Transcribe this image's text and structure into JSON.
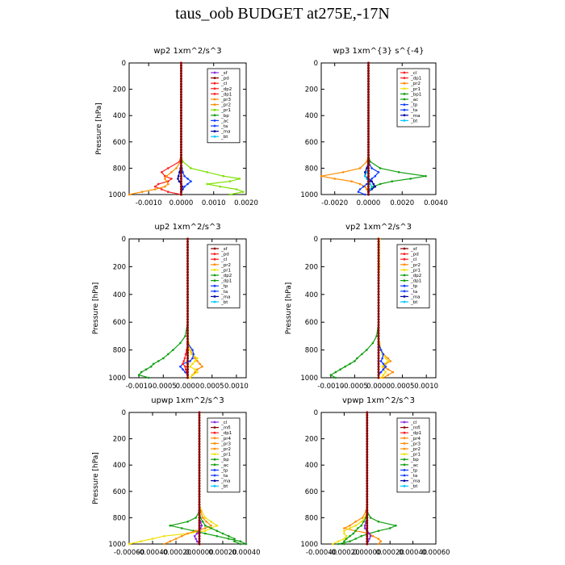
{
  "title": "taus_oob  BUDGET at275E,-17N",
  "colors": {
    "purple": "#8a2be2",
    "dark_red": "#8b0000",
    "red": "#ff2020",
    "orange": "#ff8c00",
    "yellow": "#f0e000",
    "lightgreen": "#7ee000",
    "green": "#10a010",
    "blue": "#1040ff",
    "darkblue": "#0000a0",
    "cyan": "#00c8ff",
    "axis": "#000000"
  },
  "chart_data": [
    {
      "type": "line",
      "title": "wp2  1xm^2/s^3",
      "ylabel": "Pressure [hPa]",
      "xlim": [
        -0.0016,
        0.002
      ],
      "ylim": [
        1000,
        0
      ],
      "xticks": [
        -0.001,
        0.0,
        0.001,
        0.002
      ],
      "xtick_labels": [
        "-0.0010",
        "0.0000",
        "0.0010",
        "0.0020"
      ],
      "yticks": [
        0,
        200,
        400,
        600,
        800,
        1000
      ],
      "ytick_labels": [
        "0",
        "200",
        "400",
        "600",
        "800",
        "1000"
      ],
      "legend_position": "top-right",
      "legend": [
        "_sf",
        "_pd",
        "_cl",
        "_dp2",
        "_dp1",
        "_pr3",
        "_pr2",
        "_pr1",
        "_bp",
        "_ac",
        "_ta",
        "_ma",
        "_bt"
      ],
      "series_colors": [
        "#8a2be2",
        "#8b0000",
        "#ff2020",
        "#ff2020",
        "#ff2020",
        "#ff8c00",
        "#ff8c00",
        "#7ee000",
        "#10a010",
        "#1040ff",
        "#1040ff",
        "#0000a0",
        "#00c8ff"
      ],
      "p": [
        0,
        200,
        400,
        600,
        700,
        750,
        800,
        830,
        860,
        880,
        900,
        920,
        940,
        960,
        980,
        1000
      ],
      "series": [
        {
          "name": "_cl",
          "values": [
            0,
            0,
            0,
            0,
            0,
            -5e-05,
            -0.0004,
            -0.0006,
            -0.0005,
            -0.0003,
            -0.0004,
            -0.0007,
            -0.0008,
            -0.0006,
            -0.0004,
            0
          ]
        },
        {
          "name": "_pr2",
          "values": [
            0,
            0,
            0,
            0,
            0,
            -2e-05,
            -0.00015,
            -0.0003,
            -0.00045,
            -0.0005,
            -0.00045,
            -0.0004,
            -0.0005,
            -0.0008,
            -0.0012,
            -0.0016
          ]
        },
        {
          "name": "_pr1",
          "values": [
            0,
            0,
            0,
            0,
            0,
            5e-05,
            0.0003,
            0.0008,
            0.0013,
            0.0018,
            0.0015,
            0.0008,
            0.0012,
            0.0017,
            0.0019,
            0.0015
          ]
        },
        {
          "name": "_ac",
          "values": [
            0,
            0,
            0,
            0,
            0,
            0,
            2e-05,
            5e-05,
            0.0001,
            0.0002,
            0.0003,
            0.0002,
            0.0001,
            5e-05,
            0,
            0
          ]
        },
        {
          "name": "_ma",
          "values": [
            0,
            0,
            0,
            0,
            0,
            0,
            -2e-05,
            -5e-05,
            -8e-05,
            -0.0001,
            -6e-05,
            0,
            3e-05,
            2e-05,
            0,
            0
          ]
        }
      ]
    },
    {
      "type": "line",
      "title": "wp3  1xm^{3} s^{-4}",
      "ylabel": "",
      "xlim": [
        -0.0028,
        0.004
      ],
      "ylim": [
        1000,
        0
      ],
      "xticks": [
        -0.002,
        0.0,
        0.002,
        0.004
      ],
      "xtick_labels": [
        "-0.0020",
        "0.0000",
        "0.0020",
        "0.0040"
      ],
      "yticks": [
        0,
        200,
        400,
        600,
        800,
        1000
      ],
      "ytick_labels": [
        "0",
        "200",
        "400",
        "600",
        "800",
        "1000"
      ],
      "legend_position": "top-right",
      "legend": [
        "_cl",
        "_dp1",
        "_pr2",
        "_pr1",
        "_bp1",
        "_ac",
        "_tp",
        "_ta",
        "_ma",
        "_bt"
      ],
      "series_colors": [
        "#ff2020",
        "#ff2020",
        "#ff8c00",
        "#f0e000",
        "#10a010",
        "#10a010",
        "#1040ff",
        "#1040ff",
        "#0000a0",
        "#00c8ff"
      ],
      "p": [
        0,
        200,
        400,
        600,
        700,
        750,
        800,
        830,
        860,
        880,
        900,
        920,
        940,
        960,
        980,
        1000
      ],
      "series": [
        {
          "name": "_pr2",
          "values": [
            0,
            0,
            0,
            0,
            0,
            -0.0001,
            -0.0005,
            -0.0015,
            -0.0028,
            -0.002,
            -0.001,
            -0.0005,
            -0.0002,
            -0.0001,
            0,
            0
          ]
        },
        {
          "name": "_ac",
          "values": [
            0,
            0,
            0,
            0,
            0,
            0.0001,
            0.0007,
            0.0018,
            0.0034,
            0.0025,
            0.0014,
            0.0007,
            0.0003,
            0.0001,
            0,
            0
          ]
        },
        {
          "name": "_tp",
          "values": [
            0,
            0,
            0,
            0,
            0,
            0,
            0.0002,
            0.0006,
            0.0004,
            0.0002,
            0.0001,
            -0.0001,
            -0.0003,
            -0.0005,
            -0.0006,
            -0.0002
          ]
        },
        {
          "name": "_ma",
          "values": [
            0,
            0,
            0,
            0,
            0,
            0,
            -0.0001,
            -0.0002,
            -0.0002,
            0,
            0.0002,
            0.0003,
            0.0004,
            0.0002,
            0,
            0
          ]
        },
        {
          "name": "_bt",
          "values": [
            0,
            0,
            0,
            0,
            0,
            0,
            0,
            -0.0001,
            -0.0002,
            -0.0001,
            0,
            0.0001,
            0.0002,
            0.0001,
            0,
            0
          ]
        }
      ]
    },
    {
      "type": "line",
      "title": "up2   1xm^2/s^3",
      "ylabel": "Pressure [hPa]",
      "xlim": [
        -0.0012,
        0.0012
      ],
      "ylim": [
        1000,
        0
      ],
      "xticks": [
        -0.001,
        -0.0005,
        0.0,
        0.0005,
        0.001
      ],
      "xtick_labels": [
        "-0.0010",
        "-0.0005",
        "0.0000",
        "0.0005",
        "0.0010"
      ],
      "yticks": [
        0,
        200,
        400,
        600,
        800,
        1000
      ],
      "ytick_labels": [
        "0",
        "200",
        "400",
        "600",
        "800",
        "1000"
      ],
      "legend_position": "top-right",
      "legend": [
        "_sf",
        "_pd",
        "_cl",
        "_pr2",
        "_pr1",
        "_dp2",
        "_dp1",
        "_tp",
        "_ta",
        "_ma",
        "_bt"
      ],
      "series_colors": [
        "#8b0000",
        "#ff2020",
        "#ff2020",
        "#ff8c00",
        "#f0e000",
        "#10a010",
        "#10a010",
        "#1040ff",
        "#1040ff",
        "#0000a0",
        "#00c8ff"
      ],
      "p": [
        0,
        200,
        400,
        600,
        700,
        750,
        800,
        830,
        860,
        880,
        900,
        920,
        940,
        960,
        980,
        1000
      ],
      "series": [
        {
          "name": "_dp1",
          "values": [
            0,
            0,
            0,
            0,
            -5e-05,
            -0.00015,
            -0.0003,
            -0.0004,
            -0.0005,
            -0.0006,
            -0.0007,
            -0.00075,
            -0.00085,
            -0.00095,
            -0.001,
            -0.0008
          ]
        },
        {
          "name": "_pr2",
          "values": [
            0,
            0,
            0,
            0,
            0,
            2e-05,
            5e-05,
            0.0001,
            0.00015,
            0.0002,
            0.00025,
            0.0003,
            0.0002,
            0.00015,
            0.0001,
            5e-05
          ]
        },
        {
          "name": "_pr1",
          "values": [
            0,
            0,
            0,
            0,
            0,
            2e-05,
            4e-05,
            8e-05,
            0.0002,
            0.00015,
            0.0001,
            5e-05,
            0.00015,
            0.0002,
            0.0001,
            5e-05
          ]
        },
        {
          "name": "_tp",
          "values": [
            0,
            0,
            0,
            0,
            0,
            0,
            0.0001,
            0.00012,
            0.0001,
            5e-05,
            -0.0001,
            -0.00015,
            -0.0001,
            -5e-05,
            0,
            0
          ]
        },
        {
          "name": "_cl",
          "values": [
            0,
            0,
            0,
            0,
            0,
            0,
            -2e-05,
            -4e-05,
            -6e-05,
            -8e-05,
            -0.0001,
            -5e-05,
            -4e-05,
            -2e-05,
            0,
            0
          ]
        }
      ]
    },
    {
      "type": "line",
      "title": "vp2   1xm^2/s^3",
      "ylabel": "Pressure [hPa]",
      "xlim": [
        -0.0012,
        0.0012
      ],
      "ylim": [
        1000,
        0
      ],
      "xticks": [
        -0.001,
        -0.0005,
        0.0,
        0.0005,
        0.001
      ],
      "xtick_labels": [
        "-0.0010",
        "-0.0005",
        "0.0000",
        "0.0005",
        "0.0010"
      ],
      "yticks": [
        0,
        200,
        400,
        600,
        800,
        1000
      ],
      "ytick_labels": [
        "0",
        "200",
        "400",
        "600",
        "800",
        "1000"
      ],
      "legend_position": "top-right",
      "legend": [
        "_sf",
        "_pd",
        "_cl",
        "_pr2",
        "_pr1",
        "_dp2",
        "_dp1",
        "_tp",
        "_ta",
        "_ma",
        "_bt"
      ],
      "series_colors": [
        "#8b0000",
        "#ff2020",
        "#ff2020",
        "#ff8c00",
        "#f0e000",
        "#10a010",
        "#10a010",
        "#1040ff",
        "#1040ff",
        "#0000a0",
        "#00c8ff"
      ],
      "p": [
        0,
        200,
        400,
        600,
        700,
        750,
        800,
        830,
        860,
        880,
        900,
        920,
        940,
        960,
        980,
        1000
      ],
      "series": [
        {
          "name": "_dp1",
          "values": [
            0,
            0,
            0,
            0,
            -4e-05,
            -0.00012,
            -0.00025,
            -0.00035,
            -0.00045,
            -0.0005,
            -0.0006,
            -0.0007,
            -0.0008,
            -0.0009,
            -0.001,
            -0.0009
          ]
        },
        {
          "name": "_pr2",
          "values": [
            0,
            0,
            0,
            0,
            0,
            2e-05,
            5e-05,
            0.0001,
            0.0002,
            0.00025,
            0.00015,
            0.0001,
            0.0002,
            0.0003,
            0.0002,
            0.0001
          ]
        },
        {
          "name": "_pr1",
          "values": [
            2e-05,
            2e-05,
            0,
            0,
            0,
            2e-05,
            4e-05,
            8e-05,
            0.00015,
            0.0002,
            0.00012,
            8e-05,
            0.0001,
            0.00015,
            0.0001,
            5e-05
          ]
        },
        {
          "name": "_tp",
          "values": [
            0,
            0,
            0,
            0,
            0,
            0,
            5e-05,
            0.0001,
            8e-05,
            5e-05,
            0.0001,
            0.00015,
            0.0001,
            5e-05,
            0,
            0
          ]
        }
      ]
    },
    {
      "type": "line",
      "title": "upwp   1xm^2/s^3",
      "ylabel": "Pressure [hPa]",
      "xlim": [
        -0.0006,
        0.0004
      ],
      "ylim": [
        1000,
        0
      ],
      "xticks": [
        -0.0006,
        -0.0004,
        -0.0002,
        0.0,
        0.0002,
        0.0004
      ],
      "xtick_labels": [
        "-0.00060",
        "-0.00040",
        "-0.00020",
        "0.00000",
        "0.00020",
        "0.00040"
      ],
      "yticks": [
        0,
        200,
        400,
        600,
        800,
        1000
      ],
      "ytick_labels": [
        "0",
        "200",
        "400",
        "600",
        "800",
        "1000"
      ],
      "legend_position": "top-right",
      "legend": [
        "_cl",
        "_mfl",
        "_dp1",
        "_pr4",
        "_pr3",
        "_pr2",
        "_pr1",
        "_bp",
        "_ac",
        "_tp",
        "_ta",
        "_ma",
        "_bt"
      ],
      "series_colors": [
        "#8a2be2",
        "#8b0000",
        "#ff2020",
        "#ff8c00",
        "#ff8c00",
        "#ff8c00",
        "#f0e000",
        "#10a010",
        "#10a010",
        "#1040ff",
        "#1040ff",
        "#0000a0",
        "#00c8ff"
      ],
      "p": [
        0,
        200,
        400,
        600,
        700,
        750,
        800,
        830,
        860,
        880,
        900,
        920,
        940,
        960,
        980,
        1000
      ],
      "series": [
        {
          "name": "_pr1",
          "values": [
            0,
            0,
            0,
            0,
            0,
            2e-05,
            5e-05,
            0.0001,
            0.00015,
            0.0001,
            5e-05,
            -0.0001,
            -0.0003,
            -0.0004,
            -0.0005,
            -0.0006
          ]
        },
        {
          "name": "_bp",
          "values": [
            0,
            0,
            0,
            0,
            0,
            0,
            -3e-05,
            -0.0001,
            -0.00025,
            -0.00015,
            -5e-05,
            5e-05,
            0.00015,
            0.00025,
            0.00035,
            0.0004
          ]
        },
        {
          "name": "_pr2",
          "values": [
            0,
            0,
            0,
            0,
            0,
            1e-05,
            3e-05,
            6e-05,
            0.0001,
            5e-05,
            -3e-05,
            -0.0001,
            -0.00015,
            -0.0002,
            -0.00025,
            -0.0003
          ]
        },
        {
          "name": "_ac",
          "values": [
            0,
            0,
            0,
            0,
            0,
            0,
            1e-05,
            3e-05,
            5e-05,
            0.0001,
            0.00015,
            0.0002,
            0.00025,
            0.0003,
            0.0003,
            0.00035
          ]
        },
        {
          "name": "_cl",
          "values": [
            0,
            0,
            0,
            0,
            0,
            0,
            0,
            1e-05,
            2e-05,
            1e-05,
            0,
            -2e-05,
            -4e-05,
            -3e-05,
            -2e-05,
            0
          ]
        }
      ]
    },
    {
      "type": "line",
      "title": "vpwp   1xm^2/s^3",
      "ylabel": "",
      "xlim": [
        -0.0004,
        0.0006
      ],
      "ylim": [
        1000,
        0
      ],
      "xticks": [
        -0.0004,
        -0.0002,
        0.0,
        0.0002,
        0.0004,
        0.0006
      ],
      "xtick_labels": [
        "-0.00040",
        "-0.00020",
        "0.00000",
        "0.00020",
        "0.00040",
        "0.00060"
      ],
      "yticks": [
        0,
        200,
        400,
        600,
        800,
        1000
      ],
      "ytick_labels": [
        "0",
        "200",
        "400",
        "600",
        "800",
        "1000"
      ],
      "legend_position": "top-right",
      "legend": [
        "_cl",
        "_mfl",
        "_dp1",
        "_pr4",
        "_pr3",
        "_pr2",
        "_pr1",
        "_bp",
        "_ac",
        "_tp",
        "_ta",
        "_ma",
        "_bt"
      ],
      "series_colors": [
        "#8a2be2",
        "#8b0000",
        "#ff2020",
        "#ff8c00",
        "#ff8c00",
        "#ff8c00",
        "#f0e000",
        "#10a010",
        "#10a010",
        "#1040ff",
        "#1040ff",
        "#0000a0",
        "#00c8ff"
      ],
      "p": [
        0,
        200,
        400,
        600,
        700,
        750,
        800,
        830,
        860,
        880,
        900,
        920,
        940,
        960,
        980,
        1000
      ],
      "series": [
        {
          "name": "_bp",
          "values": [
            0,
            0,
            0,
            0,
            0,
            0,
            3e-05,
            0.0001,
            0.00025,
            0.0002,
            0.0001,
            2e-05,
            -5e-05,
            -0.0001,
            -0.00015,
            -0.00025
          ]
        },
        {
          "name": "_pr2",
          "values": [
            0,
            0,
            0,
            0,
            0,
            -1e-05,
            -4e-05,
            -0.0001,
            -0.00015,
            -0.0002,
            -0.0001,
            2e-05,
            5e-05,
            0.0001,
            0.00012,
            0.0001
          ]
        },
        {
          "name": "_pr1",
          "values": [
            0,
            0,
            0,
            0,
            0,
            0,
            -2e-05,
            -5e-05,
            -0.0001,
            -0.00015,
            -0.0002,
            -0.0002,
            -0.00018,
            -0.0002,
            -0.00025,
            -0.0003
          ]
        },
        {
          "name": "_ac",
          "values": [
            0,
            0,
            0,
            0,
            0,
            0,
            -1e-05,
            -3e-05,
            -5e-05,
            -8e-05,
            -0.0001,
            -0.00012,
            -0.00015,
            -0.00018,
            -0.0002,
            -0.0002
          ]
        },
        {
          "name": "_cl",
          "values": [
            0,
            0,
            0,
            0,
            0,
            0,
            0,
            -1e-05,
            -2e-05,
            -2e-05,
            0,
            2e-05,
            3e-05,
            2e-05,
            1e-05,
            0
          ]
        }
      ]
    }
  ]
}
